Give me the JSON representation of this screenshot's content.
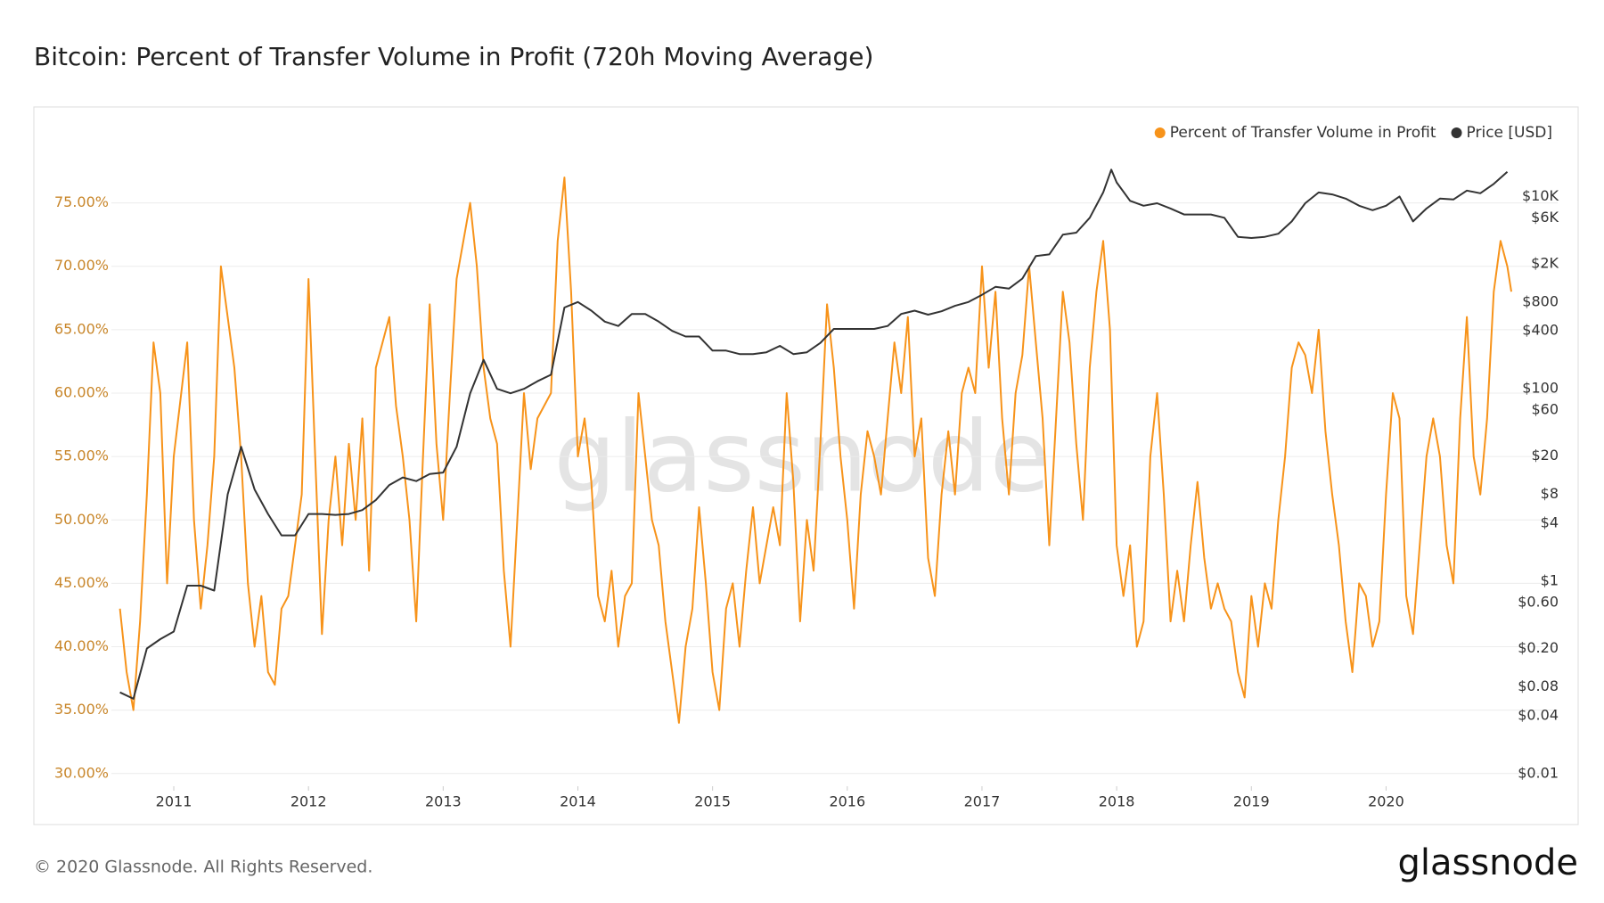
{
  "chart_data": {
    "type": "line",
    "title": "Bitcoin: Percent of Transfer Volume in Profit (720h Moving Average)",
    "watermark": "glassnode",
    "footer": "© 2020 Glassnode. All Rights Reserved.",
    "logo": "glassnode",
    "xlim": [
      2010.55,
      2020.93
    ],
    "xticks": [
      2011,
      2012,
      2013,
      2014,
      2015,
      2016,
      2017,
      2018,
      2019,
      2020
    ],
    "ylim": [
      29,
      79.4
    ],
    "yticks": [
      {
        "value": 30,
        "label": "30.00%"
      },
      {
        "value": 35,
        "label": "35.00%"
      },
      {
        "value": 40,
        "label": "40.00%"
      },
      {
        "value": 45,
        "label": "45.00%"
      },
      {
        "value": 50,
        "label": "50.00%"
      },
      {
        "value": 55,
        "label": "55.00%"
      },
      {
        "value": 60,
        "label": "60.00%"
      },
      {
        "value": 65,
        "label": "65.00%"
      },
      {
        "value": 70,
        "label": "70.00%"
      },
      {
        "value": 75,
        "label": "75.00%"
      }
    ],
    "y2lim": [
      0.0074,
      32600
    ],
    "y2log": true,
    "y2ticks": [
      {
        "value": 0.01,
        "label": "$0.01"
      },
      {
        "value": 0.04,
        "label": "$0.04"
      },
      {
        "value": 0.08,
        "label": "$0.08"
      },
      {
        "value": 0.2,
        "label": "$0.20"
      },
      {
        "value": 0.6,
        "label": "$0.60"
      },
      {
        "value": 1,
        "label": "$1"
      },
      {
        "value": 4,
        "label": "$4"
      },
      {
        "value": 8,
        "label": "$8"
      },
      {
        "value": 20,
        "label": "$20"
      },
      {
        "value": 60,
        "label": "$60"
      },
      {
        "value": 100,
        "label": "$100"
      },
      {
        "value": 400,
        "label": "$400"
      },
      {
        "value": 800,
        "label": "$800"
      },
      {
        "value": 2000,
        "label": "$2K"
      },
      {
        "value": 6000,
        "label": "$6K"
      },
      {
        "value": 10000,
        "label": "$10K"
      }
    ],
    "grid": true,
    "legend": "top-right",
    "series": [
      {
        "name": "Percent of Transfer Volume in Profit",
        "color": "#f7931a",
        "x": [
          2010.6,
          2010.65,
          2010.7,
          2010.75,
          2010.8,
          2010.85,
          2010.9,
          2010.95,
          2011.0,
          2011.1,
          2011.15,
          2011.2,
          2011.25,
          2011.3,
          2011.35,
          2011.4,
          2011.45,
          2011.5,
          2011.55,
          2011.6,
          2011.65,
          2011.7,
          2011.75,
          2011.8,
          2011.85,
          2011.9,
          2011.95,
          2012.0,
          2012.05,
          2012.1,
          2012.15,
          2012.2,
          2012.25,
          2012.3,
          2012.35,
          2012.4,
          2012.45,
          2012.5,
          2012.6,
          2012.65,
          2012.7,
          2012.75,
          2012.8,
          2012.85,
          2012.9,
          2012.95,
          2013.0,
          2013.05,
          2013.1,
          2013.15,
          2013.2,
          2013.25,
          2013.3,
          2013.35,
          2013.4,
          2013.45,
          2013.5,
          2013.55,
          2013.6,
          2013.65,
          2013.7,
          2013.8,
          2013.85,
          2013.9,
          2013.95,
          2014.0,
          2014.05,
          2014.1,
          2014.15,
          2014.2,
          2014.25,
          2014.3,
          2014.35,
          2014.4,
          2014.45,
          2014.5,
          2014.55,
          2014.6,
          2014.65,
          2014.7,
          2014.75,
          2014.8,
          2014.85,
          2014.9,
          2014.95,
          2015.0,
          2015.05,
          2015.1,
          2015.15,
          2015.2,
          2015.25,
          2015.3,
          2015.35,
          2015.4,
          2015.45,
          2015.5,
          2015.55,
          2015.6,
          2015.65,
          2015.7,
          2015.75,
          2015.8,
          2015.85,
          2015.9,
          2015.95,
          2016.0,
          2016.05,
          2016.1,
          2016.15,
          2016.2,
          2016.25,
          2016.3,
          2016.35,
          2016.4,
          2016.45,
          2016.5,
          2016.55,
          2016.6,
          2016.65,
          2016.7,
          2016.75,
          2016.8,
          2016.85,
          2016.9,
          2016.95,
          2017.0,
          2017.05,
          2017.1,
          2017.15,
          2017.2,
          2017.25,
          2017.3,
          2017.35,
          2017.4,
          2017.45,
          2017.5,
          2017.55,
          2017.6,
          2017.65,
          2017.7,
          2017.75,
          2017.8,
          2017.85,
          2017.9,
          2017.95,
          2018.0,
          2018.05,
          2018.1,
          2018.15,
          2018.2,
          2018.25,
          2018.3,
          2018.35,
          2018.4,
          2018.45,
          2018.5,
          2018.55,
          2018.6,
          2018.65,
          2018.7,
          2018.75,
          2018.8,
          2018.85,
          2018.9,
          2018.95,
          2019.0,
          2019.05,
          2019.1,
          2019.15,
          2019.2,
          2019.25,
          2019.3,
          2019.35,
          2019.4,
          2019.45,
          2019.5,
          2019.55,
          2019.6,
          2019.65,
          2019.7,
          2019.75,
          2019.8,
          2019.85,
          2019.9,
          2019.95,
          2020.0,
          2020.05,
          2020.1,
          2020.15,
          2020.2,
          2020.25,
          2020.3,
          2020.35,
          2020.4,
          2020.45,
          2020.5,
          2020.55,
          2020.6,
          2020.65,
          2020.7,
          2020.75,
          2020.8,
          2020.85,
          2020.9,
          2020.93
        ],
        "values": [
          43,
          38,
          35,
          42,
          52,
          64,
          60,
          45,
          55,
          64,
          50,
          43,
          48,
          55,
          70,
          66,
          62,
          55,
          45,
          40,
          44,
          38,
          37,
          43,
          44,
          48,
          52,
          69,
          55,
          41,
          50,
          55,
          48,
          56,
          50,
          58,
          46,
          62,
          66,
          59,
          55,
          50,
          42,
          55,
          67,
          56,
          50,
          60,
          69,
          72,
          75,
          70,
          62,
          58,
          56,
          46,
          40,
          50,
          60,
          54,
          58,
          60,
          72,
          77,
          68,
          55,
          58,
          53,
          44,
          42,
          46,
          40,
          44,
          45,
          60,
          55,
          50,
          48,
          42,
          38,
          34,
          40,
          43,
          51,
          45,
          38,
          35,
          43,
          45,
          40,
          46,
          51,
          45,
          48,
          51,
          48,
          60,
          53,
          42,
          50,
          46,
          56,
          67,
          62,
          55,
          50,
          43,
          52,
          57,
          55,
          52,
          58,
          64,
          60,
          66,
          55,
          58,
          47,
          44,
          52,
          57,
          52,
          60,
          62,
          60,
          70,
          62,
          68,
          58,
          52,
          60,
          63,
          70,
          64,
          58,
          48,
          58,
          68,
          64,
          56,
          50,
          62,
          68,
          72,
          65,
          48,
          44,
          48,
          40,
          42,
          55,
          60,
          52,
          42,
          46,
          42,
          48,
          53,
          47,
          43,
          45,
          43,
          42,
          38,
          36,
          44,
          40,
          45,
          43,
          50,
          55,
          62,
          64,
          63,
          60,
          65,
          57,
          52,
          48,
          42,
          38,
          45,
          44,
          40,
          42,
          52,
          60,
          58,
          44,
          41,
          48,
          55,
          58,
          55,
          48,
          45,
          58,
          66,
          55,
          52,
          58,
          68,
          72,
          70,
          68
        ]
      },
      {
        "name": "Price [USD]",
        "color": "#333333",
        "axis": "y2",
        "x": [
          2010.6,
          2010.7,
          2010.8,
          2010.9,
          2011.0,
          2011.1,
          2011.2,
          2011.3,
          2011.4,
          2011.5,
          2011.6,
          2011.7,
          2011.8,
          2011.9,
          2012.0,
          2012.1,
          2012.2,
          2012.3,
          2012.4,
          2012.5,
          2012.6,
          2012.7,
          2012.8,
          2012.9,
          2013.0,
          2013.1,
          2013.2,
          2013.3,
          2013.4,
          2013.5,
          2013.6,
          2013.7,
          2013.8,
          2013.9,
          2014.0,
          2014.1,
          2014.2,
          2014.3,
          2014.4,
          2014.5,
          2014.6,
          2014.7,
          2014.8,
          2014.9,
          2015.0,
          2015.1,
          2015.2,
          2015.3,
          2015.4,
          2015.5,
          2015.6,
          2015.7,
          2015.8,
          2015.9,
          2016.0,
          2016.1,
          2016.2,
          2016.3,
          2016.4,
          2016.5,
          2016.6,
          2016.7,
          2016.8,
          2016.9,
          2017.0,
          2017.1,
          2017.2,
          2017.3,
          2017.4,
          2017.5,
          2017.6,
          2017.7,
          2017.8,
          2017.9,
          2017.96,
          2018.0,
          2018.1,
          2018.2,
          2018.3,
          2018.4,
          2018.5,
          2018.6,
          2018.7,
          2018.8,
          2018.9,
          2019.0,
          2019.1,
          2019.2,
          2019.3,
          2019.4,
          2019.5,
          2019.6,
          2019.7,
          2019.8,
          2019.9,
          2020.0,
          2020.1,
          2020.2,
          2020.3,
          2020.4,
          2020.5,
          2020.6,
          2020.7,
          2020.8,
          2020.9
        ],
        "values": [
          0.07,
          0.06,
          0.2,
          0.25,
          0.3,
          0.9,
          0.9,
          0.8,
          8,
          25,
          9,
          5,
          3,
          3,
          5,
          5,
          4.9,
          5,
          5.5,
          7,
          10,
          12,
          11,
          13,
          13.5,
          25,
          90,
          200,
          100,
          90,
          100,
          120,
          140,
          700,
          800,
          650,
          500,
          450,
          600,
          600,
          500,
          400,
          350,
          350,
          250,
          250,
          230,
          230,
          240,
          280,
          230,
          240,
          300,
          420,
          420,
          420,
          420,
          450,
          600,
          650,
          590,
          640,
          730,
          800,
          950,
          1150,
          1100,
          1400,
          2400,
          2500,
          4000,
          4200,
          6000,
          11000,
          19000,
          14000,
          9000,
          8000,
          8500,
          7500,
          6500,
          6500,
          6500,
          6000,
          3800,
          3700,
          3800,
          4100,
          5500,
          8500,
          11000,
          10500,
          9500,
          8000,
          7200,
          8000,
          10000,
          5500,
          7500,
          9500,
          9300,
          11500,
          10800,
          13500,
          18000
        ]
      }
    ]
  }
}
